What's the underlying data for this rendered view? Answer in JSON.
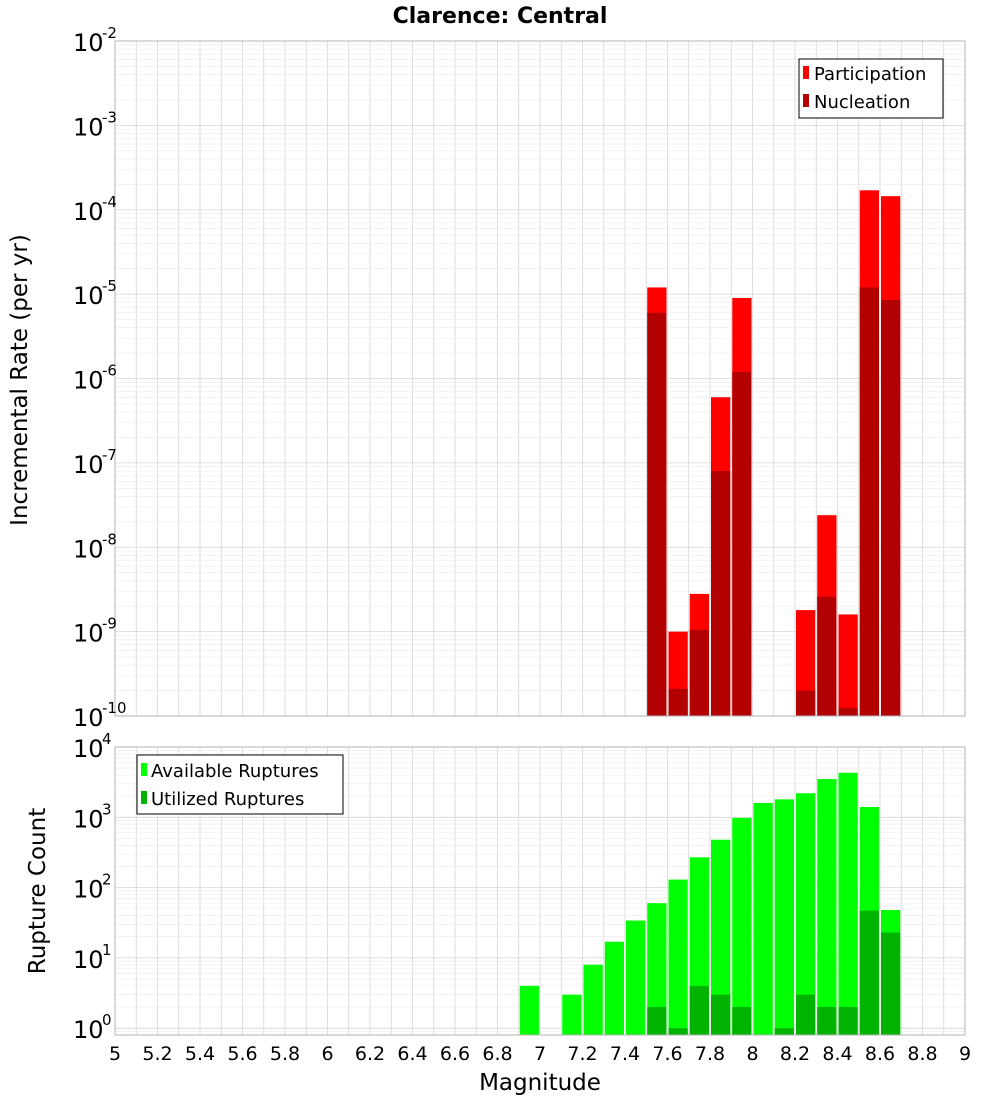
{
  "chart_data": [
    {
      "type": "bar",
      "title": "Clarence: Central",
      "ylabel": "Incremental Rate (per yr)",
      "xlabel": "",
      "yscale": "log",
      "ylim": [
        1e-10,
        0.01
      ],
      "xlim": [
        5,
        9
      ],
      "bin_width": 0.1,
      "legend_position": "top-right",
      "grid": true,
      "y_ticks": [
        {
          "base": "10",
          "exp": "-10"
        },
        {
          "base": "10",
          "exp": "-9"
        },
        {
          "base": "10",
          "exp": "-8"
        },
        {
          "base": "10",
          "exp": "-7"
        },
        {
          "base": "10",
          "exp": "-6"
        },
        {
          "base": "10",
          "exp": "-5"
        },
        {
          "base": "10",
          "exp": "-4"
        },
        {
          "base": "10",
          "exp": "-3"
        },
        {
          "base": "10",
          "exp": "-2"
        }
      ],
      "series": [
        {
          "name": "Participation",
          "color": "#ff0000",
          "points": [
            {
              "x": 7.55,
              "y": 1.2e-05
            },
            {
              "x": 7.65,
              "y": 1e-09
            },
            {
              "x": 7.75,
              "y": 2.8e-09
            },
            {
              "x": 7.85,
              "y": 6e-07
            },
            {
              "x": 7.95,
              "y": 9e-06
            },
            {
              "x": 8.25,
              "y": 1.8e-09
            },
            {
              "x": 8.35,
              "y": 2.4e-08
            },
            {
              "x": 8.45,
              "y": 1.6e-09
            },
            {
              "x": 8.55,
              "y": 0.00017
            },
            {
              "x": 8.65,
              "y": 0.000145
            }
          ]
        },
        {
          "name": "Nucleation",
          "color": "#b30000",
          "points": [
            {
              "x": 7.55,
              "y": 6e-06
            },
            {
              "x": 7.65,
              "y": 2.1e-10
            },
            {
              "x": 7.75,
              "y": 1.05e-09
            },
            {
              "x": 7.85,
              "y": 8e-08
            },
            {
              "x": 7.95,
              "y": 1.2e-06
            },
            {
              "x": 8.25,
              "y": 2e-10
            },
            {
              "x": 8.35,
              "y": 2.6e-09
            },
            {
              "x": 8.45,
              "y": 1.25e-10
            },
            {
              "x": 8.55,
              "y": 1.2e-05
            },
            {
              "x": 8.65,
              "y": 8.5e-06
            }
          ]
        }
      ]
    },
    {
      "type": "bar",
      "title": "",
      "ylabel": "Rupture Count",
      "xlabel": "Magnitude",
      "yscale": "log",
      "ylim": [
        0.8,
        10000
      ],
      "xlim": [
        5,
        9
      ],
      "bin_width": 0.1,
      "legend_position": "top-left",
      "grid": true,
      "x_ticks": [
        "5",
        "5.2",
        "5.4",
        "5.6",
        "5.8",
        "6",
        "6.2",
        "6.4",
        "6.6",
        "6.8",
        "7",
        "7.2",
        "7.4",
        "7.6",
        "7.8",
        "8",
        "8.2",
        "8.4",
        "8.6",
        "8.8",
        "9"
      ],
      "y_ticks": [
        {
          "base": "10",
          "exp": "0"
        },
        {
          "base": "10",
          "exp": "1"
        },
        {
          "base": "10",
          "exp": "2"
        },
        {
          "base": "10",
          "exp": "3"
        },
        {
          "base": "10",
          "exp": "4"
        }
      ],
      "series": [
        {
          "name": "Available Ruptures",
          "color": "#00ff00",
          "points": [
            {
              "x": 6.95,
              "y": 4
            },
            {
              "x": 7.15,
              "y": 3
            },
            {
              "x": 7.25,
              "y": 8
            },
            {
              "x": 7.35,
              "y": 17
            },
            {
              "x": 7.45,
              "y": 34
            },
            {
              "x": 7.55,
              "y": 60
            },
            {
              "x": 7.65,
              "y": 130
            },
            {
              "x": 7.75,
              "y": 270
            },
            {
              "x": 7.85,
              "y": 480
            },
            {
              "x": 7.95,
              "y": 980
            },
            {
              "x": 8.05,
              "y": 1600
            },
            {
              "x": 8.15,
              "y": 1800
            },
            {
              "x": 8.25,
              "y": 2200
            },
            {
              "x": 8.35,
              "y": 3500
            },
            {
              "x": 8.45,
              "y": 4300
            },
            {
              "x": 8.55,
              "y": 1400
            },
            {
              "x": 8.65,
              "y": 48
            }
          ]
        },
        {
          "name": "Utilized Ruptures",
          "color": "#00b300",
          "points": [
            {
              "x": 7.55,
              "y": 2
            },
            {
              "x": 7.65,
              "y": 1
            },
            {
              "x": 7.75,
              "y": 4
            },
            {
              "x": 7.85,
              "y": 3
            },
            {
              "x": 7.95,
              "y": 2
            },
            {
              "x": 8.15,
              "y": 1
            },
            {
              "x": 8.25,
              "y": 3
            },
            {
              "x": 8.35,
              "y": 2
            },
            {
              "x": 8.45,
              "y": 2
            },
            {
              "x": 8.55,
              "y": 47
            },
            {
              "x": 8.65,
              "y": 23
            }
          ]
        }
      ]
    }
  ]
}
